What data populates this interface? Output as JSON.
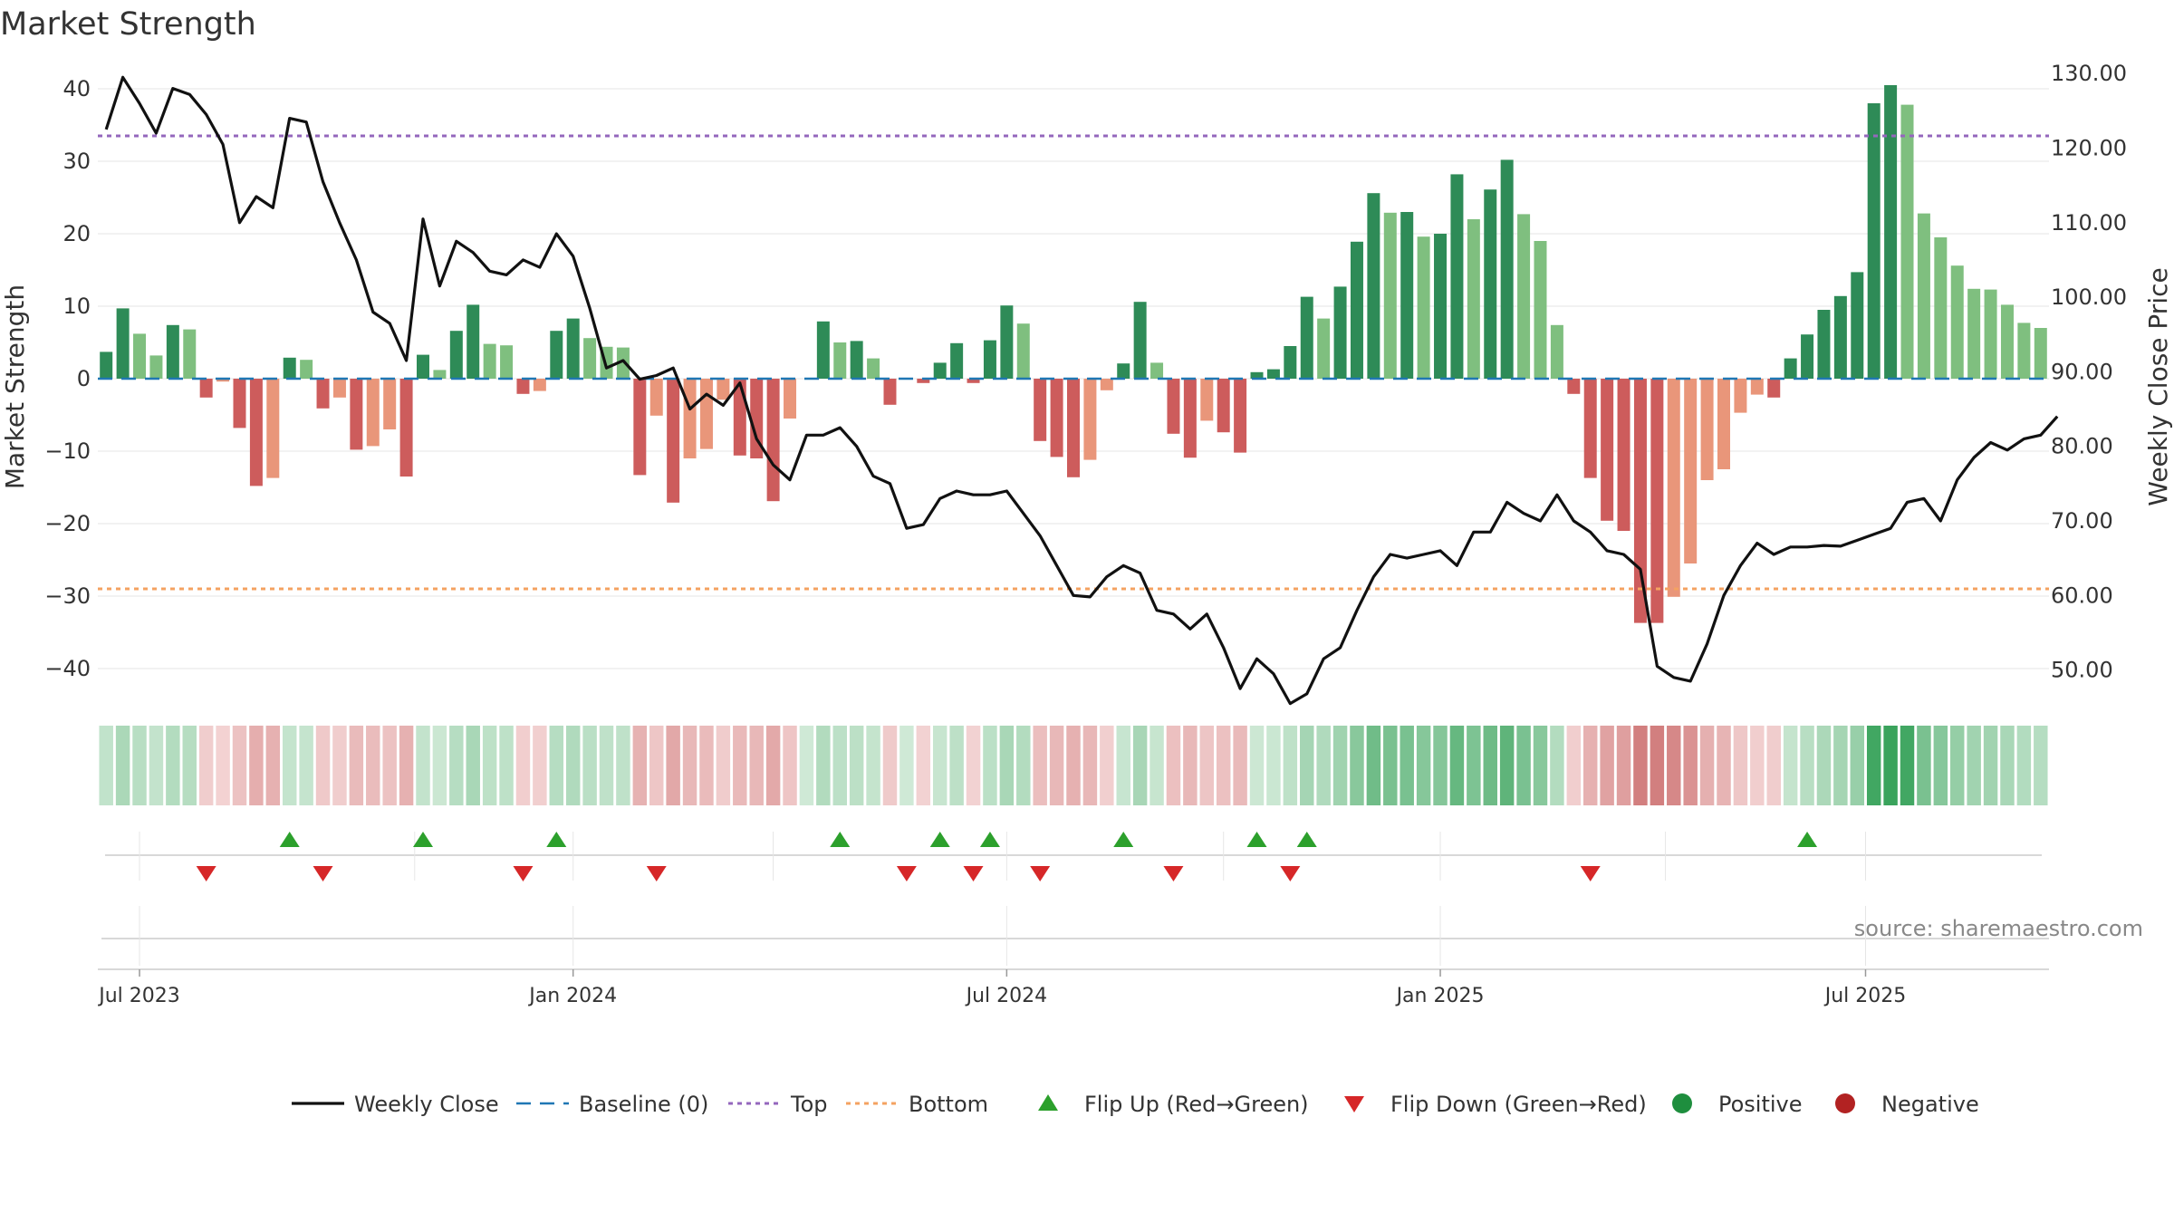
{
  "chart_data": {
    "type": "bar",
    "title": "Market Strength",
    "ylabel_left": "Market Strength",
    "ylabel_right": "Weekly Close Price",
    "y_left_ticks": [
      40,
      30,
      20,
      10,
      0,
      -10,
      -20,
      -30,
      -40
    ],
    "y_left_tick_labels": [
      "40",
      "30",
      "20",
      "10",
      "0",
      "−10",
      "−20",
      "−30",
      "−40"
    ],
    "y_left_range": [
      -44,
      42
    ],
    "y_right_ticks": [
      130,
      120,
      110,
      100,
      90,
      80,
      70,
      60,
      50
    ],
    "y_right_tick_labels": [
      "130.00",
      "120.00",
      "110.00",
      "100.00",
      "90.00",
      "80.00",
      "70.00",
      "60.00",
      "50.00"
    ],
    "y_right_range": [
      46.3,
      129.9
    ],
    "x_ticks": [
      {
        "label": "Jul 2023",
        "index": 2
      },
      {
        "label": "Jan 2024",
        "index": 28
      },
      {
        "label": "Jul 2024",
        "index": 54
      },
      {
        "label": "Jan 2025",
        "index": 80
      },
      {
        "label": "Jul 2025",
        "index": 105.5
      }
    ],
    "top_line": 33.5,
    "bottom_line": -29,
    "source": "source: sharemaestro.com",
    "series": [
      {
        "name": "Market Strength",
        "values": [
          3.7,
          9.7,
          6.2,
          3.2,
          7.4,
          6.8,
          -2.6,
          -0.4,
          -6.8,
          -14.8,
          -13.7,
          2.9,
          2.6,
          -4.1,
          -2.6,
          -9.8,
          -9.3,
          -7.0,
          -13.5,
          3.3,
          1.2,
          6.6,
          10.2,
          4.8,
          4.6,
          -2.1,
          -1.7,
          6.6,
          8.3,
          5.6,
          4.4,
          4.3,
          -13.3,
          -5.1,
          -17.1,
          -11.0,
          -9.7,
          -2.9,
          -10.6,
          -11.0,
          -16.9,
          -5.5,
          0,
          7.9,
          5.0,
          5.2,
          2.8,
          -3.6,
          0,
          -0.6,
          2.2,
          4.9,
          -0.6,
          5.3,
          10.1,
          7.6,
          -8.6,
          -10.8,
          -13.6,
          -11.2,
          -1.6,
          2.1,
          10.6,
          2.2,
          -7.6,
          -10.9,
          -5.8,
          -7.4,
          -10.2,
          0.9,
          1.3,
          4.5,
          11.3,
          8.3,
          12.7,
          18.9,
          25.6,
          22.9,
          23.0,
          19.6,
          20.0,
          28.2,
          22.0,
          26.1,
          30.2,
          22.7,
          19.0,
          7.4,
          -2.1,
          -13.7,
          -19.6,
          -21.0,
          -33.7,
          -33.7,
          -30.1,
          -25.5,
          -14.0,
          -12.5,
          -4.7,
          -2.2,
          -2.6,
          2.8,
          6.1,
          9.5,
          11.4,
          14.7,
          38.0,
          40.5,
          37.8,
          22.8,
          19.5,
          15.6,
          12.4,
          12.3,
          10.2,
          7.7,
          7.0
        ]
      },
      {
        "name": "Weekly Close",
        "values": [
          122.5,
          129.5,
          126.0,
          122.0,
          128.0,
          127.2,
          124.5,
          120.5,
          110.0,
          113.5,
          112.0,
          124.0,
          123.5,
          115.5,
          110.0,
          105.0,
          98.0,
          96.5,
          91.5,
          110.5,
          101.5,
          107.5,
          106.0,
          103.5,
          103.0,
          105.0,
          104.0,
          108.5,
          105.5,
          98.5,
          90.5,
          91.5,
          89.0,
          89.5,
          90.5,
          85.0,
          87.0,
          85.5,
          88.5,
          81.0,
          77.5,
          75.5,
          81.5,
          81.5,
          82.5,
          80.0,
          76.0,
          75.0,
          69.0,
          69.5,
          73.0,
          74.0,
          73.5,
          73.5,
          74.0,
          71.0,
          68.0,
          64.0,
          60.0,
          59.8,
          62.5,
          64.0,
          63.0,
          58.0,
          57.5,
          55.5,
          57.5,
          53.0,
          47.5,
          51.5,
          49.5,
          45.5,
          46.8,
          51.5,
          53.0,
          58.0,
          62.5,
          65.5,
          65.0,
          65.5,
          66.0,
          64.0,
          68.5,
          68.5,
          72.5,
          71.0,
          70.0,
          73.5,
          70.0,
          68.5,
          66.0,
          65.5,
          63.5,
          50.5,
          49.0,
          48.5,
          53.5,
          60.0,
          64.0,
          67.0,
          65.5,
          66.5,
          66.5,
          66.7,
          66.6,
          67.4,
          68.2,
          69.0,
          72.5,
          73.0,
          70.0,
          75.5,
          78.5,
          80.5,
          79.5,
          81.0,
          81.5,
          84.0
        ]
      }
    ],
    "flip_up": [
      11,
      19,
      27,
      44,
      50,
      53,
      61,
      69,
      72,
      102
    ],
    "flip_down": [
      6,
      13,
      25,
      33,
      48,
      52,
      56,
      64,
      71,
      89
    ],
    "legend_position": "bottom",
    "legend": [
      {
        "key": "weekly_close",
        "label": "Weekly Close"
      },
      {
        "key": "baseline",
        "label": "Baseline (0)"
      },
      {
        "key": "top",
        "label": "Top"
      },
      {
        "key": "bottom",
        "label": "Bottom"
      },
      {
        "key": "flip_up",
        "label": "Flip Up (Red→Green)"
      },
      {
        "key": "flip_down",
        "label": "Flip Down (Green→Red)"
      },
      {
        "key": "positive",
        "label": "Positive"
      },
      {
        "key": "negative",
        "label": "Negative"
      }
    ],
    "colors": {
      "pos_dark": "#2e8b57",
      "pos_light": "#7fbf7f",
      "neg_dark": "#cd5c5c",
      "neg_light": "#e9967a",
      "line": "#111111",
      "baseline": "#1f77b4",
      "top": "#9467bd",
      "bottom": "#f4a261",
      "flip_up": "#2ca02c",
      "flip_down": "#d62728",
      "positive": "#1e8e3e",
      "negative": "#b22222"
    }
  }
}
